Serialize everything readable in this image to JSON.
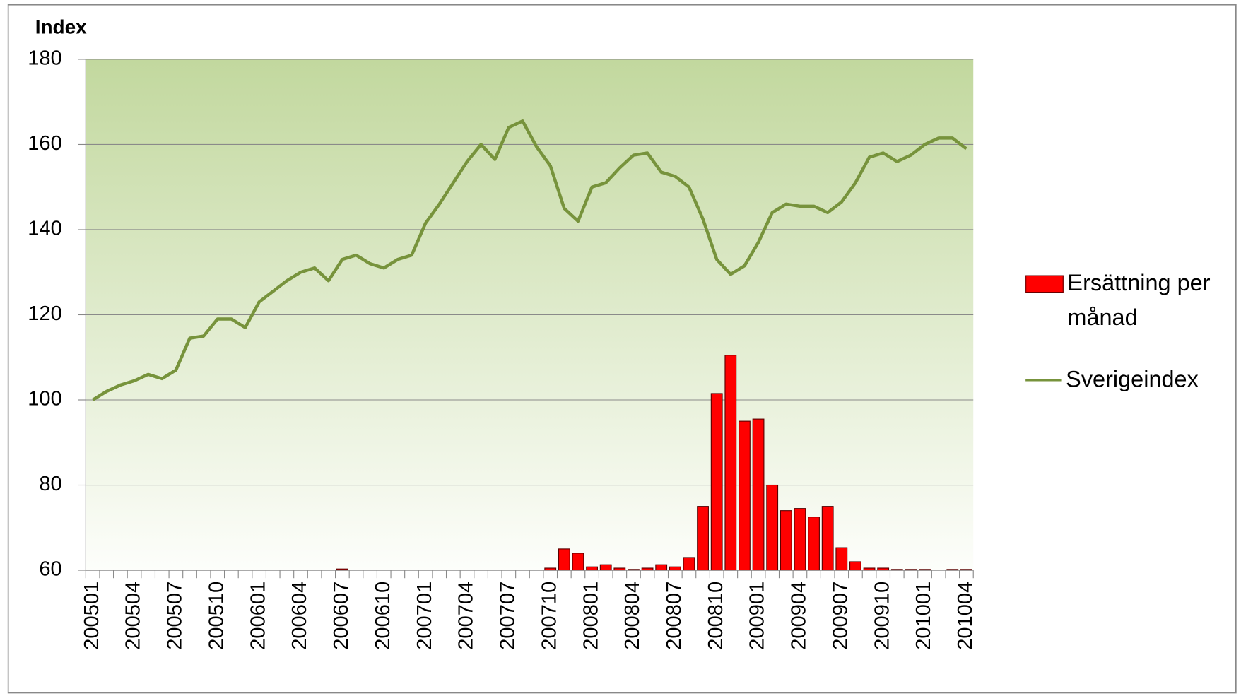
{
  "chart_data": {
    "type": "bar",
    "y_label": "Index",
    "categories": [
      "200501",
      null,
      null,
      "200504",
      null,
      null,
      "200507",
      null,
      null,
      "200510",
      null,
      null,
      "200601",
      null,
      null,
      "200604",
      null,
      null,
      "200607",
      null,
      null,
      "200610",
      null,
      null,
      "200701",
      null,
      null,
      "200704",
      null,
      null,
      "200707",
      null,
      null,
      "200710",
      null,
      null,
      "200801",
      null,
      null,
      "200804",
      null,
      null,
      "200807",
      null,
      null,
      "200810",
      null,
      null,
      "200901",
      null,
      null,
      "200904",
      null,
      null,
      "200907",
      null,
      null,
      "200910",
      null,
      null,
      "201001",
      null,
      null,
      "201004"
    ],
    "series": [
      {
        "name": "Ersättning per månad",
        "type": "bar",
        "color": "#ff0000",
        "values": [
          60,
          60,
          60,
          60,
          60,
          60,
          60,
          60,
          60,
          60,
          60,
          60,
          60,
          60,
          60,
          60,
          60,
          60,
          60.3,
          60,
          60,
          60,
          60,
          60,
          60,
          60,
          60,
          60,
          60,
          60,
          60,
          60,
          60,
          60.5,
          65,
          64,
          60.8,
          61.3,
          60.5,
          60.2,
          60.5,
          61.3,
          60.8,
          63,
          75,
          101.5,
          110.5,
          95,
          95.5,
          80,
          74,
          74.5,
          72.5,
          75,
          65.3,
          62,
          60.5,
          60.5,
          60.2,
          60.2,
          60.2,
          60,
          60.2,
          60.2
        ]
      },
      {
        "name": "Sverigeindex",
        "type": "line",
        "color": "#77933c",
        "values": [
          100,
          102,
          103.5,
          104.5,
          106,
          105,
          107,
          114.5,
          115,
          119,
          119,
          117,
          123,
          125.5,
          128,
          130,
          131,
          128,
          133,
          134,
          132,
          131,
          133,
          134,
          141.5,
          146,
          151,
          156,
          160,
          156.5,
          164,
          165.5,
          159.5,
          155,
          145,
          142,
          150,
          151,
          154.5,
          157.5,
          158,
          153.5,
          152.5,
          150,
          142.5,
          133,
          129.5,
          131.5,
          137,
          144,
          146,
          145.5,
          145.5,
          144,
          146.5,
          151,
          157,
          158,
          156,
          157.5,
          160,
          161.5,
          161.5,
          159
        ]
      }
    ],
    "ylim": [
      60,
      180
    ],
    "yticks": [
      60,
      80,
      100,
      120,
      140,
      160,
      180
    ],
    "grid": true
  }
}
